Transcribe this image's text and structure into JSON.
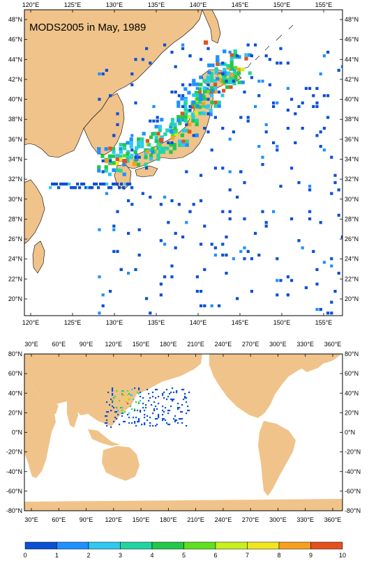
{
  "title": "MODS2005 in May, 1989",
  "colors": {
    "land": "#f0c38a",
    "ocean": "#ffffff",
    "frame": "#000000",
    "scale": [
      "#0a4fd6",
      "#1e90ff",
      "#2ec8f0",
      "#20d6a0",
      "#22c84a",
      "#5ee01e",
      "#c8f01e",
      "#f0e61e",
      "#f5a01e",
      "#e6501e"
    ]
  },
  "regional_map": {
    "lon_ticks": [
      "120°E",
      "125°E",
      "130°E",
      "135°E",
      "140°E",
      "145°E",
      "150°E",
      "155°E"
    ],
    "lat_ticks": [
      "48°N",
      "46°N",
      "44°N",
      "42°N",
      "40°N",
      "38°N",
      "36°N",
      "34°N",
      "32°N",
      "30°N",
      "28°N",
      "26°N",
      "24°N",
      "22°N",
      "20°N"
    ]
  },
  "global_map": {
    "lon_ticks": [
      "30°E",
      "60°E",
      "90°E",
      "120°E",
      "150°E",
      "180°E",
      "210°E",
      "240°E",
      "270°E",
      "300°E",
      "330°E",
      "360°E"
    ],
    "lat_ticks": [
      "80°N",
      "60°N",
      "40°N",
      "20°N",
      "0°N",
      "-20°N",
      "-40°N",
      "-60°N",
      "-80°N"
    ]
  },
  "colorbar": {
    "labels": [
      "0",
      "1",
      "2",
      "3",
      "4",
      "5",
      "6",
      "7",
      "8",
      "9",
      "10"
    ]
  }
}
